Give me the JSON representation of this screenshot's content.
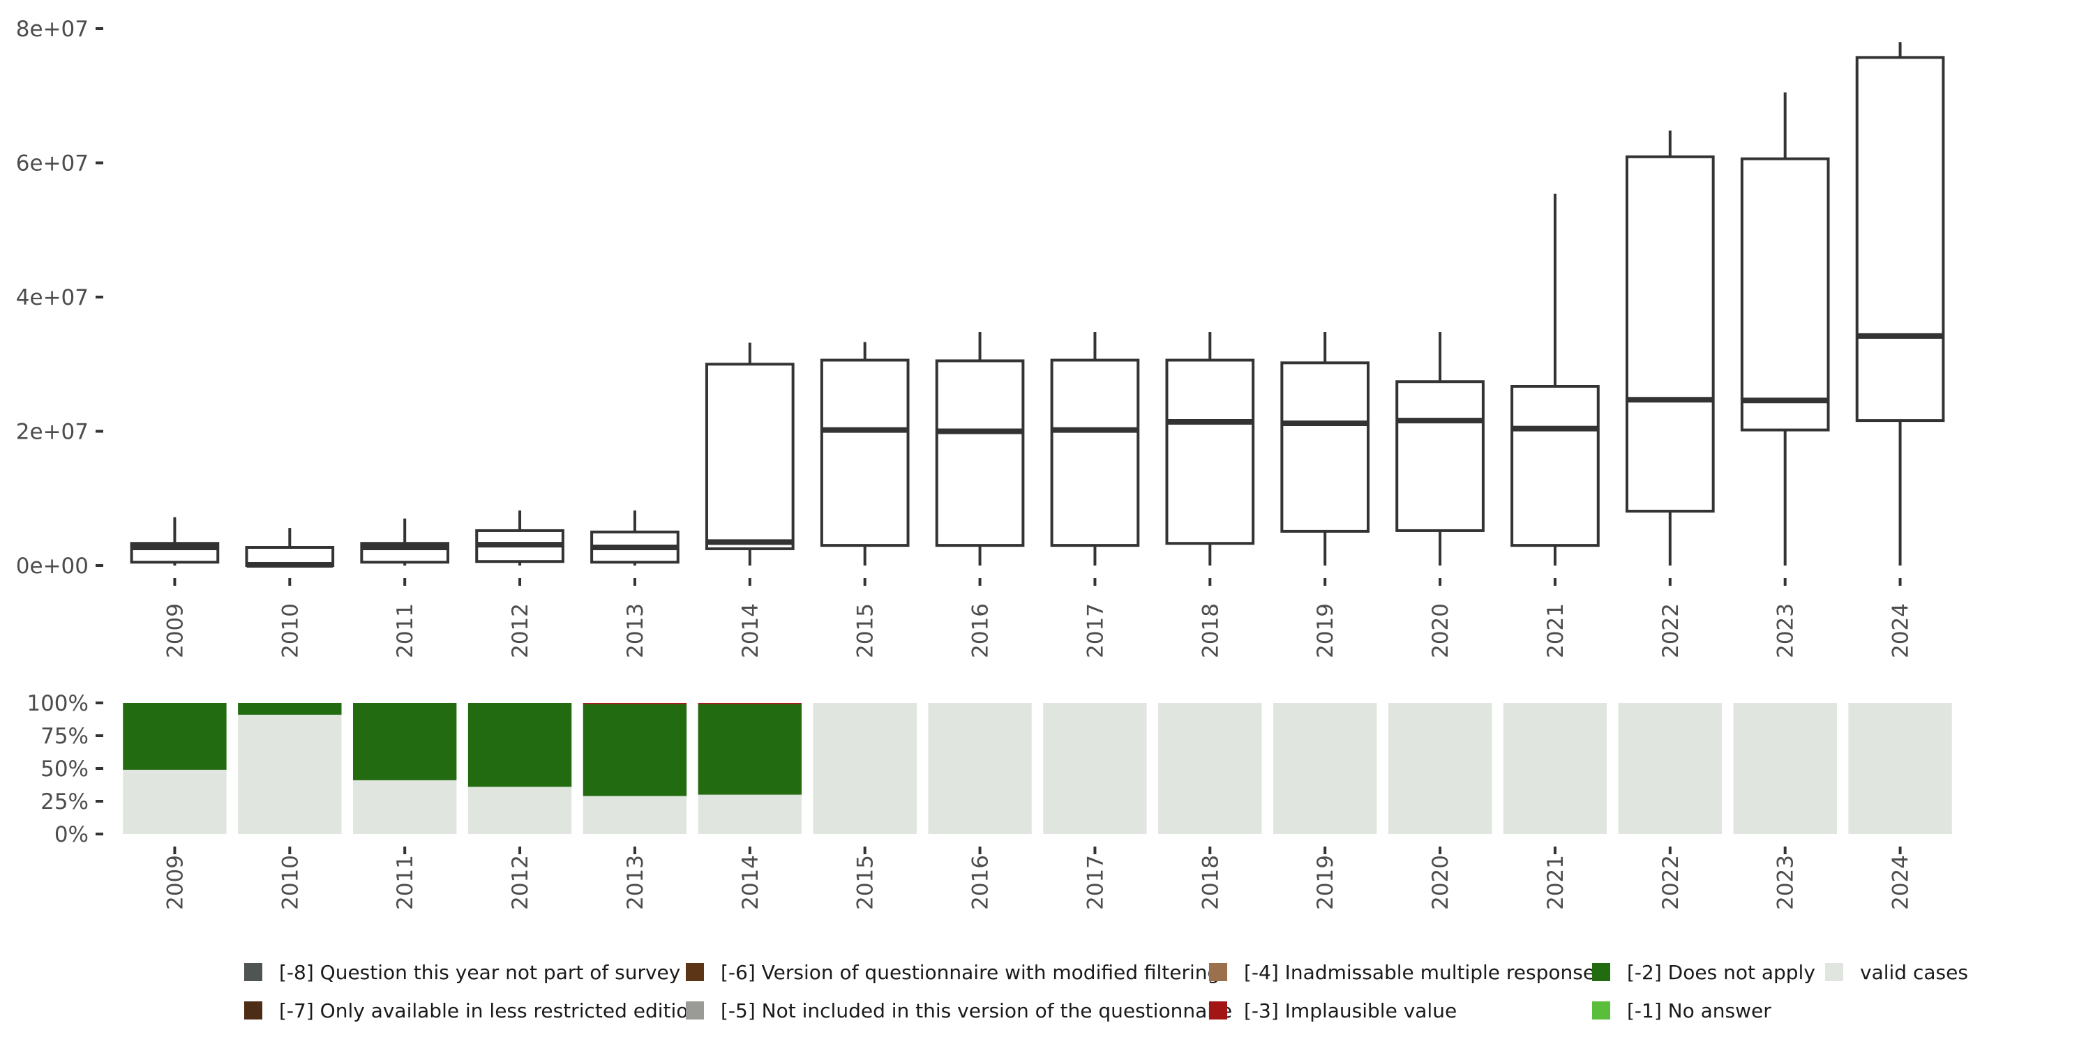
{
  "chart_data": [
    {
      "type": "boxplot",
      "title": "",
      "xlabel": "",
      "ylabel": "",
      "categories": [
        "2009",
        "2010",
        "2011",
        "2012",
        "2013",
        "2014",
        "2015",
        "2016",
        "2017",
        "2018",
        "2019",
        "2020",
        "2021",
        "2022",
        "2023",
        "2024"
      ],
      "ylim": [
        0,
        80000000
      ],
      "y_ticks": [
        0,
        20000000,
        40000000,
        60000000,
        80000000
      ],
      "y_tick_labels": [
        "0e+00",
        "2e+07",
        "4e+07",
        "6e+07",
        "8e+07"
      ],
      "boxes": [
        {
          "category": "2009",
          "lower_whisker": 0,
          "q1": 500000,
          "median": 2700000,
          "q3": 3300000,
          "upper_whisker": 7200000
        },
        {
          "category": "2010",
          "lower_whisker": 0,
          "q1": 0,
          "median": 100000,
          "q3": 2700000,
          "upper_whisker": 5600000
        },
        {
          "category": "2011",
          "lower_whisker": 0,
          "q1": 500000,
          "median": 2700000,
          "q3": 3300000,
          "upper_whisker": 7000000
        },
        {
          "category": "2012",
          "lower_whisker": 0,
          "q1": 600000,
          "median": 3100000,
          "q3": 5200000,
          "upper_whisker": 8200000
        },
        {
          "category": "2013",
          "lower_whisker": 0,
          "q1": 500000,
          "median": 2700000,
          "q3": 5000000,
          "upper_whisker": 8200000
        },
        {
          "category": "2014",
          "lower_whisker": 0,
          "q1": 2500000,
          "median": 3500000,
          "q3": 30000000,
          "upper_whisker": 33200000
        },
        {
          "category": "2015",
          "lower_whisker": 0,
          "q1": 3000000,
          "median": 20200000,
          "q3": 30600000,
          "upper_whisker": 33300000
        },
        {
          "category": "2016",
          "lower_whisker": 0,
          "q1": 3000000,
          "median": 20000000,
          "q3": 30500000,
          "upper_whisker": 34800000
        },
        {
          "category": "2017",
          "lower_whisker": 0,
          "q1": 3000000,
          "median": 20200000,
          "q3": 30600000,
          "upper_whisker": 34800000
        },
        {
          "category": "2018",
          "lower_whisker": 0,
          "q1": 3300000,
          "median": 21400000,
          "q3": 30600000,
          "upper_whisker": 34800000
        },
        {
          "category": "2019",
          "lower_whisker": 0,
          "q1": 5100000,
          "median": 21200000,
          "q3": 30200000,
          "upper_whisker": 34800000
        },
        {
          "category": "2020",
          "lower_whisker": 0,
          "q1": 5200000,
          "median": 21600000,
          "q3": 27400000,
          "upper_whisker": 34800000
        },
        {
          "category": "2021",
          "lower_whisker": 0,
          "q1": 3000000,
          "median": 20400000,
          "q3": 26700000,
          "upper_whisker": 55400000
        },
        {
          "category": "2022",
          "lower_whisker": 0,
          "q1": 8100000,
          "median": 24700000,
          "q3": 60900000,
          "upper_whisker": 64800000
        },
        {
          "category": "2023",
          "lower_whisker": 0,
          "q1": 20200000,
          "median": 24600000,
          "q3": 60600000,
          "upper_whisker": 70500000
        },
        {
          "category": "2024",
          "lower_whisker": 0,
          "q1": 21600000,
          "median": 34200000,
          "q3": 75700000,
          "upper_whisker": 78000000
        }
      ]
    },
    {
      "type": "stacked_bar",
      "title": "",
      "xlabel": "",
      "ylabel": "",
      "categories": [
        "2009",
        "2010",
        "2011",
        "2012",
        "2013",
        "2014",
        "2015",
        "2016",
        "2017",
        "2018",
        "2019",
        "2020",
        "2021",
        "2022",
        "2023",
        "2024"
      ],
      "ylim": [
        0,
        1
      ],
      "y_ticks": [
        0,
        0.25,
        0.5,
        0.75,
        1
      ],
      "y_tick_labels": [
        "0%",
        "25%",
        "50%",
        "75%",
        "100%"
      ],
      "series": [
        {
          "name": "valid cases",
          "color": "#e1e5df",
          "values": [
            0.49,
            0.91,
            0.41,
            0.36,
            0.29,
            0.3,
            1,
            1,
            1,
            1,
            1,
            1,
            1,
            1,
            1,
            1
          ]
        },
        {
          "name": "[-2] Does not apply",
          "color": "#226b11",
          "values": [
            0.51,
            0.09,
            0.59,
            0.64,
            0.7,
            0.69,
            0,
            0,
            0,
            0,
            0,
            0,
            0,
            0,
            0,
            0
          ]
        },
        {
          "name": "[-3] Implausible value",
          "color": "#a31515",
          "values": [
            0,
            0,
            0,
            0,
            0.01,
            0.01,
            0,
            0,
            0,
            0,
            0,
            0,
            0,
            0,
            0,
            0
          ]
        }
      ],
      "legend_position": "bottom",
      "legend": [
        {
          "label": "[-8] Question this year not part of survey",
          "color": "#4f5553"
        },
        {
          "label": "[-7] Only available in less restricted edition",
          "color": "#4e2d17"
        },
        {
          "label": "[-6] Version of questionnaire with modified filtering",
          "color": "#5b3515"
        },
        {
          "label": "[-5] Not included in this version of the questionnaire",
          "color": "#9a9b96"
        },
        {
          "label": "[-4] Inadmissable multiple response",
          "color": "#9a704d"
        },
        {
          "label": "[-3] Implausible value",
          "color": "#a31515"
        },
        {
          "label": "[-2] Does not apply",
          "color": "#226b11"
        },
        {
          "label": "[-1] No answer",
          "color": "#5abd3c"
        },
        {
          "label": "valid cases",
          "color": "#e1e5df"
        }
      ]
    }
  ]
}
